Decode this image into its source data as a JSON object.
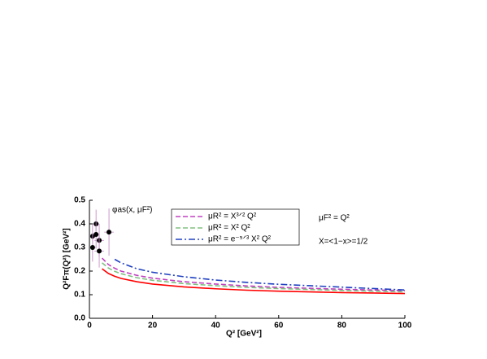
{
  "chart_data": {
    "type": "line",
    "xlabel": "Q² [GeV²]",
    "ylabel": "Q²Fπ(Q²) [GeV²]",
    "annotations": [
      "φas(x, μF²)",
      "μF² = Q²",
      "X=<1−x>=1/2"
    ],
    "x": [
      4,
      6,
      8,
      10,
      15,
      20,
      30,
      40,
      50,
      60,
      70,
      80,
      90,
      100
    ],
    "series": [
      {
        "color": "#ff0000",
        "dash": "solid",
        "values": [
          0.21,
          0.19,
          0.178,
          0.169,
          0.155,
          0.145,
          0.133,
          0.125,
          0.119,
          0.115,
          0.112,
          0.109,
          0.107,
          0.105
        ]
      },
      {
        "name": "μR² = X³ᐟ² Q²",
        "color": "#c040c0",
        "dash": "dashed",
        "values": [
          0.255,
          0.228,
          0.212,
          0.2,
          0.182,
          0.17,
          0.155,
          0.145,
          0.137,
          0.131,
          0.127,
          0.123,
          0.12,
          0.117
        ]
      },
      {
        "name": "μR² = X² Q²",
        "color": "#80c080",
        "dash": "dashed",
        "values": [
          0.235,
          0.213,
          0.199,
          0.189,
          0.172,
          0.161,
          0.147,
          0.138,
          0.131,
          0.126,
          0.122,
          0.118,
          0.115,
          0.112
        ]
      },
      {
        "name": "μR² = e⁻⁵ᐟ³ X² Q²",
        "color": "#2040c0",
        "dash": "dashdot",
        "values": [
          null,
          null,
          0.25,
          0.235,
          0.21,
          0.195,
          0.176,
          0.162,
          0.152,
          0.144,
          0.138,
          0.132,
          0.126,
          0.12
        ]
      }
    ],
    "points": {
      "color": "#000000",
      "errcolor": "#c080c0",
      "x": [
        2.1,
        1.0,
        2.1,
        3.1,
        1.0,
        3.1,
        6.2
      ],
      "values": [
        0.4,
        0.348,
        0.355,
        0.33,
        0.3,
        0.285,
        0.365
      ],
      "errors": [
        0.06,
        0.05,
        0.06,
        0.07,
        0.06,
        0.07,
        0.1
      ],
      "xerr": [
        1.0,
        1.0,
        1.0,
        1.5,
        1.0,
        1.5,
        1.5
      ]
    },
    "xlim": [
      0,
      100
    ],
    "xticks": [
      0,
      20,
      40,
      60,
      80,
      100
    ],
    "ylim": [
      0,
      0.5
    ],
    "yticks": [
      {
        "value": 0,
        "label": "0.0"
      },
      0.1,
      0.2,
      0.3,
      0.4,
      0.5
    ]
  }
}
